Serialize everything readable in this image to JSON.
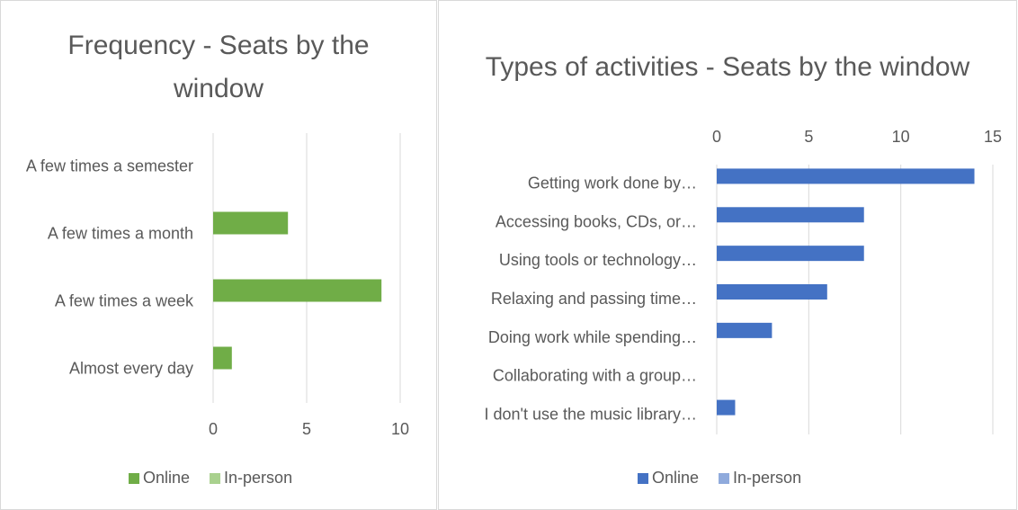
{
  "chart_data": [
    {
      "type": "bar",
      "orientation": "horizontal",
      "title": "Frequency - Seats by the window",
      "categories": [
        "A few times a semester",
        "A few times a month",
        "A few times a week",
        "Almost every day"
      ],
      "series": [
        {
          "name": "Online",
          "color": "#70ad47",
          "values": [
            0,
            4,
            9,
            1
          ]
        },
        {
          "name": "In-person",
          "color": "#a9d18e",
          "values": [
            0,
            0,
            0,
            0
          ]
        }
      ],
      "xlim": [
        0,
        10
      ],
      "xticks": [
        0,
        5,
        10
      ],
      "grid": true,
      "legend": "bottom"
    },
    {
      "type": "bar",
      "orientation": "horizontal",
      "title": "Types of activities - Seats by the window",
      "categories": [
        "Getting work done by…",
        "Accessing books, CDs, or…",
        "Using tools or technology…",
        "Relaxing and passing time…",
        "Doing work while spending…",
        "Collaborating with a group…",
        "I don't use the music library…"
      ],
      "series": [
        {
          "name": "Online",
          "color": "#4472c4",
          "values": [
            14,
            8,
            8,
            6,
            3,
            0,
            1
          ]
        },
        {
          "name": "In-person",
          "color": "#8faadc",
          "values": [
            0,
            0,
            0,
            0,
            0,
            0,
            0
          ]
        }
      ],
      "xlim": [
        0,
        15
      ],
      "xticks": [
        0,
        5,
        10,
        15
      ],
      "grid": true,
      "legend": "bottom",
      "axis_position": "top"
    }
  ]
}
